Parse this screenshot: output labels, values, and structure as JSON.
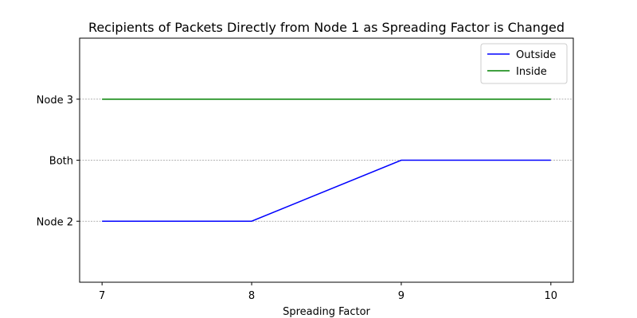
{
  "chart_data": {
    "type": "line",
    "title": "Recipients of Packets Directly from Node 1 as Spreading Factor is Changed",
    "xlabel": "Spreading Factor",
    "ylabel": "",
    "x": [
      7,
      8,
      9,
      10
    ],
    "xticks": [
      "7",
      "8",
      "9",
      "10"
    ],
    "xlim": [
      6.85,
      10.15
    ],
    "y_categories": [
      "Node 2",
      "Both",
      "Node 3"
    ],
    "ylim": [
      -1,
      3
    ],
    "grid": "horizontal-dashed",
    "legend_position": "top-right",
    "series": [
      {
        "name": "Outside",
        "color": "#0000ff",
        "values": [
          "Node 2",
          "Node 2",
          "Both",
          "Both"
        ]
      },
      {
        "name": "Inside",
        "color": "#008000",
        "values": [
          "Node 3",
          "Node 3",
          "Node 3",
          "Node 3"
        ]
      }
    ]
  }
}
